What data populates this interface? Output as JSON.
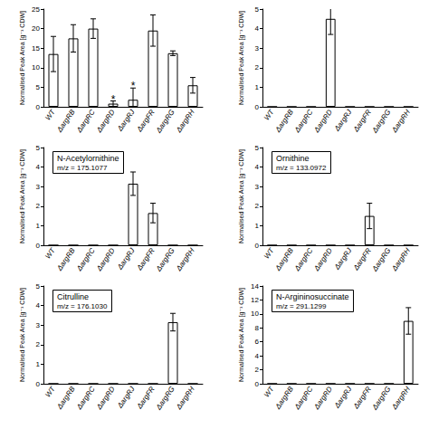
{
  "chart_data": [
    {
      "type": "bar",
      "y_label": "Normalised Peak Area [g⁻¹ CDW]",
      "categories": [
        "WT",
        "ΔargRB",
        "ΔargRC",
        "ΔargRD",
        "ΔargRJ",
        "ΔargFR",
        "ΔargRG",
        "ΔargRH"
      ],
      "values": [
        13.5,
        17.5,
        20,
        0.8,
        1.8,
        19.5,
        13.7,
        5.5
      ],
      "errors": [
        4.5,
        3.5,
        2.5,
        0.7,
        3.0,
        4.0,
        0.6,
        2.0
      ],
      "annotations": [
        {
          "category": "ΔargRD",
          "text": "*"
        },
        {
          "category": "ΔargRJ",
          "text": "*"
        }
      ],
      "color": "#ffffff",
      "ylim": [
        0,
        25
      ],
      "yticks": [
        0,
        5,
        10,
        15,
        20,
        25
      ],
      "grid": false
    },
    {
      "type": "bar",
      "y_label": "Normalised Peak Area [g⁻¹ CDW]",
      "categories": [
        "WT",
        "ΔargRB",
        "ΔargRC",
        "ΔargRD",
        "ΔargRJ",
        "ΔargFR",
        "ΔargRG",
        "ΔargRH"
      ],
      "values": [
        0,
        0,
        0,
        4.5,
        0,
        0,
        0,
        0
      ],
      "errors": [
        0,
        0,
        0,
        0.8,
        0,
        0,
        0,
        0
      ],
      "color": "#ffffff",
      "ylim": [
        0,
        5
      ],
      "yticks": [
        0,
        1,
        2,
        3,
        4,
        5
      ],
      "grid": false
    },
    {
      "type": "bar",
      "title": "N-Acetylornithine",
      "subtitle": "m/z = 175.1077",
      "y_label": "Normalised Peak Area [g⁻¹ CDW]",
      "categories": [
        "WT",
        "ΔargRB",
        "ΔargRC",
        "ΔargRD",
        "ΔargRJ",
        "ΔargFR",
        "ΔargRG",
        "ΔargRH"
      ],
      "values": [
        0,
        0,
        0,
        0,
        3.15,
        1.65,
        0,
        0
      ],
      "errors": [
        0,
        0,
        0,
        0,
        0.6,
        0.5,
        0,
        0
      ],
      "color": "#ffffff",
      "ylim": [
        0,
        5
      ],
      "yticks": [
        0,
        1,
        2,
        3,
        4,
        5
      ],
      "grid": false
    },
    {
      "type": "bar",
      "title": "Ornithine",
      "subtitle": "m/z = 133.0972",
      "y_label": "Normalised Peak Area [g⁻¹ CDW]",
      "categories": [
        "WT",
        "ΔargRB",
        "ΔargRC",
        "ΔargRD",
        "ΔargRJ",
        "ΔargFR",
        "ΔargRG",
        "ΔargRH"
      ],
      "values": [
        0,
        0,
        0,
        0,
        0,
        1.5,
        0,
        0
      ],
      "errors": [
        0,
        0,
        0,
        0,
        0,
        0.65,
        0,
        0
      ],
      "color": "#ffffff",
      "ylim": [
        0,
        5
      ],
      "yticks": [
        0,
        1,
        2,
        3,
        4,
        5
      ],
      "grid": false
    },
    {
      "type": "bar",
      "title": "Citrulline",
      "subtitle": "m/z = 176.1030",
      "y_label": "Normalised Peak Area [g⁻¹ CDW]",
      "categories": [
        "WT",
        "ΔargRB",
        "ΔargRC",
        "ΔargRD",
        "ΔargRJ",
        "ΔargFR",
        "ΔargRG",
        "ΔargRH"
      ],
      "values": [
        0,
        0,
        0,
        0,
        0,
        0,
        3.15,
        0
      ],
      "errors": [
        0,
        0,
        0,
        0,
        0,
        0,
        0.45,
        0
      ],
      "color": "#ffffff",
      "ylim": [
        0,
        5
      ],
      "yticks": [
        0,
        1,
        2,
        3,
        4,
        5
      ],
      "grid": false
    },
    {
      "type": "bar",
      "title": "N-Argininosuccinate",
      "subtitle": "m/z = 291.1299",
      "y_label": "Normalised Peak Area [g⁻¹ CDW]",
      "categories": [
        "WT",
        "ΔargRB",
        "ΔargRC",
        "ΔargRD",
        "ΔargRJ",
        "ΔargFR",
        "ΔargRG",
        "ΔargRH"
      ],
      "values": [
        0,
        0,
        0,
        0,
        0,
        0,
        0,
        9
      ],
      "errors": [
        0,
        0,
        0,
        0,
        0,
        0,
        0,
        1.9
      ],
      "color": "#ffffff",
      "ylim": [
        0,
        14
      ],
      "yticks": [
        0,
        2,
        4,
        6,
        8,
        10,
        12,
        14
      ],
      "grid": false
    }
  ]
}
